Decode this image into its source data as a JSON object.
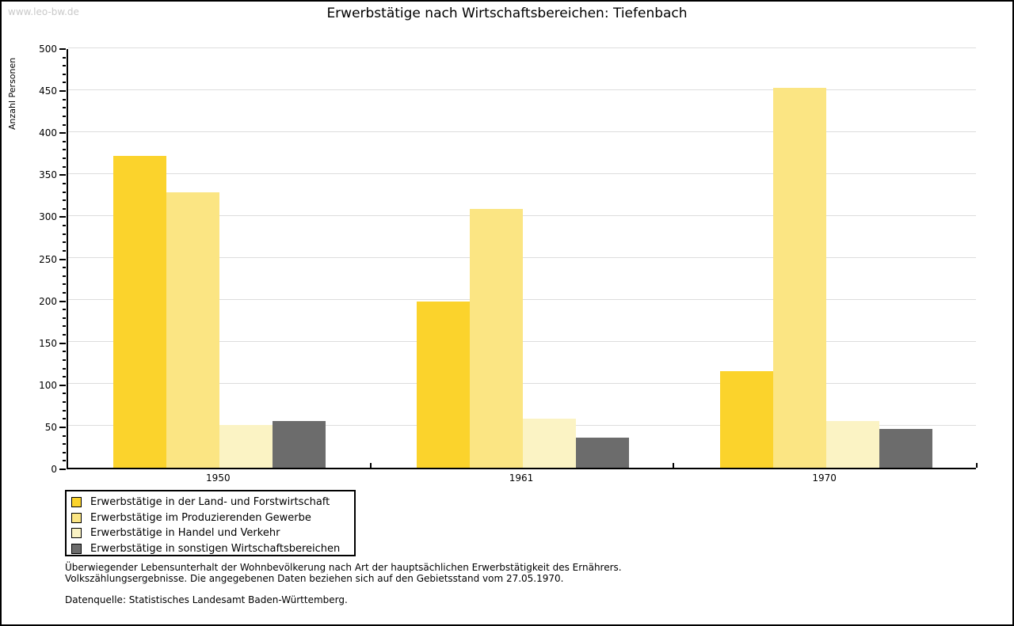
{
  "watermark": "www.leo-bw.de",
  "title": "Erwerbstätige nach Wirtschaftsbereichen: Tiefenbach",
  "chart_data": {
    "type": "bar",
    "title": "Erwerbstätige nach Wirtschaftsbereichen: Tiefenbach",
    "xlabel": "",
    "ylabel": "Anzahl Personen",
    "categories": [
      "1950",
      "1961",
      "1970"
    ],
    "series": [
      {
        "name": "Erwerbstätige in der Land- und Forstwirtschaft",
        "color": "#fbd32c",
        "values": [
          371,
          198,
          115
        ]
      },
      {
        "name": "Erwerbstätige im Produzierenden Gewerbe",
        "color": "#fbe583",
        "values": [
          328,
          308,
          452
        ]
      },
      {
        "name": "Erwerbstätige in Handel und Verkehr",
        "color": "#fbf3c4",
        "values": [
          51,
          58,
          56
        ]
      },
      {
        "name": "Erwerbstätige in sonstigen Wirtschaftsbereichen",
        "color": "#6c6c6c",
        "values": [
          56,
          36,
          46
        ]
      }
    ],
    "ylim": [
      0,
      500
    ],
    "ytick_step": 50,
    "yminor_step": 10,
    "grid": true,
    "gridline_color": "#dddddd",
    "legend_position": "bottom-left"
  },
  "notes": {
    "line1": "Überwiegender Lebensunterhalt der Wohnbevölkerung nach Art der hauptsächlichen Erwerbstätigkeit des Ernährers.",
    "line2": "Volkszählungsergebnisse. Die angegebenen Daten beziehen sich auf den Gebietsstand vom 27.05.1970.",
    "source": "Datenquelle: Statistisches Landesamt Baden-Württemberg."
  }
}
